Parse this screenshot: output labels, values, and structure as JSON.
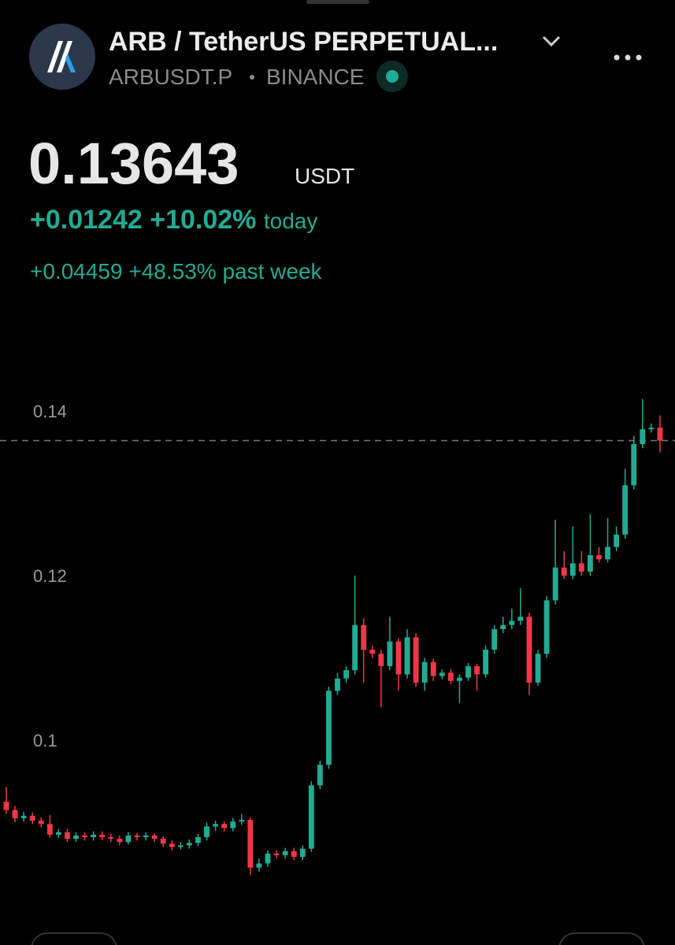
{
  "header": {
    "title": "ARB / TetherUS PERPETUAL...",
    "symbol": "ARBUSDT.P",
    "exchange": "BINANCE"
  },
  "quote": {
    "price": "0.13643",
    "currency": "USDT",
    "day_change": "+0.01242",
    "day_change_pct": "+10.02%",
    "day_label": "today",
    "week_change": "+0.04459",
    "week_change_pct": "+48.53%",
    "week_label": "past week"
  },
  "chart_data": {
    "type": "candlestick",
    "up_color": "#22ab94",
    "down_color": "#f23645",
    "ylim": [
      0.077,
      0.145
    ],
    "yticks": [
      0.1,
      0.12,
      0.14
    ],
    "grid": false,
    "last_price_line": true,
    "open": [
      0.0925,
      0.0915,
      0.0905,
      0.0908,
      0.0902,
      0.0898,
      0.0885,
      0.0888,
      0.088,
      0.0884,
      0.0882,
      0.0885,
      0.0882,
      0.088,
      0.0876,
      0.0884,
      0.0882,
      0.0884,
      0.088,
      0.0874,
      0.087,
      0.0872,
      0.0875,
      0.0882,
      0.0895,
      0.0898,
      0.0893,
      0.0901,
      0.0903,
      0.0845,
      0.085,
      0.0862,
      0.086,
      0.0865,
      0.0858,
      0.0868,
      0.0945,
      0.097,
      0.106,
      0.1075,
      0.1085,
      0.114,
      0.111,
      0.1105,
      0.109,
      0.112,
      0.108,
      0.1125,
      0.107,
      0.1095,
      0.1078,
      0.1082,
      0.1072,
      0.1076,
      0.109,
      0.108,
      0.111,
      0.1135,
      0.114,
      0.1145,
      0.115,
      0.107,
      0.1105,
      0.117,
      0.121,
      0.12,
      0.1215,
      0.1205,
      0.1225,
      0.122,
      0.1235,
      0.125,
      0.131,
      0.136,
      0.1378,
      0.138
    ],
    "high": [
      0.0943,
      0.092,
      0.0913,
      0.0912,
      0.0906,
      0.0909,
      0.0892,
      0.0892,
      0.0888,
      0.0888,
      0.0889,
      0.0889,
      0.0886,
      0.0884,
      0.0888,
      0.0887,
      0.0888,
      0.0887,
      0.0883,
      0.0878,
      0.0876,
      0.0879,
      0.0886,
      0.09,
      0.0902,
      0.0901,
      0.0905,
      0.091,
      0.0906,
      0.0856,
      0.0866,
      0.0866,
      0.0869,
      0.0869,
      0.0872,
      0.095,
      0.0975,
      0.1065,
      0.1082,
      0.109,
      0.12,
      0.1148,
      0.1115,
      0.111,
      0.115,
      0.1124,
      0.1135,
      0.113,
      0.11,
      0.1099,
      0.1086,
      0.1086,
      0.108,
      0.1094,
      0.1093,
      0.1115,
      0.114,
      0.115,
      0.116,
      0.1185,
      0.1155,
      0.111,
      0.1175,
      0.1268,
      0.123,
      0.126,
      0.123,
      0.1275,
      0.1235,
      0.127,
      0.126,
      0.133,
      0.137,
      0.1415,
      0.1385,
      0.1395
    ],
    "low": [
      0.091,
      0.09,
      0.0901,
      0.0898,
      0.0894,
      0.0881,
      0.0881,
      0.0876,
      0.0876,
      0.0878,
      0.0878,
      0.0878,
      0.0876,
      0.0872,
      0.0873,
      0.0878,
      0.0878,
      0.0876,
      0.087,
      0.0866,
      0.0867,
      0.0868,
      0.0871,
      0.0878,
      0.089,
      0.0889,
      0.0889,
      0.0897,
      0.0836,
      0.084,
      0.0846,
      0.0856,
      0.0856,
      0.0854,
      0.0854,
      0.0864,
      0.094,
      0.0965,
      0.1055,
      0.107,
      0.108,
      0.107,
      0.11,
      0.104,
      0.1085,
      0.106,
      0.1075,
      0.1065,
      0.106,
      0.1072,
      0.1074,
      0.1068,
      0.1045,
      0.1072,
      0.106,
      0.1076,
      0.1105,
      0.113,
      0.1135,
      0.114,
      0.1055,
      0.1066,
      0.11,
      0.1165,
      0.1196,
      0.1196,
      0.12,
      0.12,
      0.1216,
      0.1216,
      0.123,
      0.1245,
      0.1305,
      0.1355,
      0.1374,
      0.135
    ],
    "close": [
      0.0915,
      0.0905,
      0.0908,
      0.0902,
      0.0898,
      0.0885,
      0.0888,
      0.088,
      0.0884,
      0.0882,
      0.0885,
      0.0882,
      0.088,
      0.0876,
      0.0884,
      0.0882,
      0.0884,
      0.088,
      0.0874,
      0.087,
      0.0872,
      0.0875,
      0.0882,
      0.0895,
      0.0898,
      0.0893,
      0.0901,
      0.0903,
      0.0845,
      0.085,
      0.0862,
      0.086,
      0.0865,
      0.0858,
      0.0868,
      0.0945,
      0.097,
      0.106,
      0.1075,
      0.1085,
      0.114,
      0.111,
      0.1105,
      0.109,
      0.112,
      0.108,
      0.1125,
      0.107,
      0.1095,
      0.1078,
      0.1082,
      0.1072,
      0.1076,
      0.109,
      0.108,
      0.111,
      0.1135,
      0.114,
      0.1145,
      0.115,
      0.107,
      0.1105,
      0.117,
      0.121,
      0.12,
      0.1215,
      0.1205,
      0.1225,
      0.122,
      0.1235,
      0.125,
      0.131,
      0.136,
      0.1378,
      0.138,
      0.13643
    ]
  }
}
